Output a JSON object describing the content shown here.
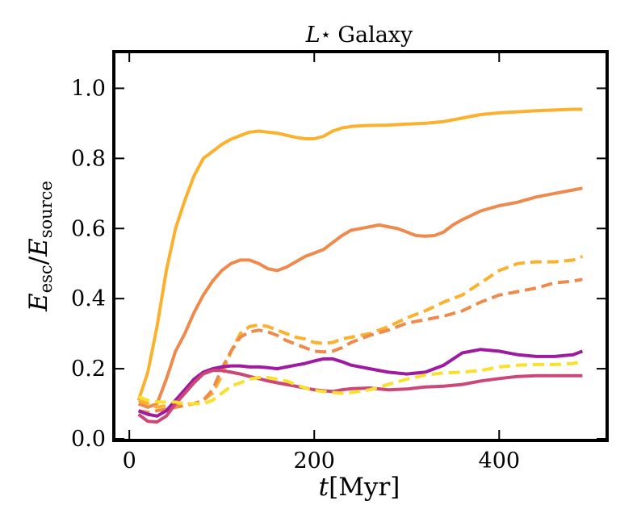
{
  "chart_data": {
    "type": "line",
    "title": "L⋆ Galaxy",
    "title_parts": {
      "symbol": "L",
      "star": "⋆",
      "rest": "Galaxy"
    },
    "xlabel": "t[Myr]",
    "xlabel_parts": {
      "var": "t",
      "unit": "[Myr]"
    },
    "ylabel": "E_esc / E_source",
    "ylabel_parts": {
      "num": "E",
      "num_sub": "esc",
      "sep": "/",
      "den": "E",
      "den_sub": "source"
    },
    "xlim": [
      -15,
      515
    ],
    "ylim": [
      0.0,
      1.1
    ],
    "xticks": [
      0,
      200,
      400
    ],
    "xtick_labels": [
      "0",
      "200",
      "400"
    ],
    "yticks": [
      0.0,
      0.2,
      0.4,
      0.6,
      0.8,
      1.0
    ],
    "ytick_labels": [
      "0.0",
      "0.2",
      "0.4",
      "0.6",
      "0.8",
      "1.0"
    ],
    "grid": false,
    "legend": "none",
    "series": [
      {
        "name": "solid-yellow-orange",
        "color": "#fbb12e",
        "dash": "solid",
        "x": [
          10,
          20,
          30,
          40,
          50,
          60,
          70,
          80,
          90,
          100,
          110,
          120,
          130,
          140,
          150,
          160,
          170,
          180,
          190,
          200,
          210,
          220,
          230,
          240,
          250,
          260,
          280,
          300,
          320,
          340,
          360,
          380,
          400,
          420,
          440,
          460,
          480,
          490
        ],
        "y": [
          0.11,
          0.19,
          0.32,
          0.48,
          0.6,
          0.68,
          0.75,
          0.8,
          0.82,
          0.84,
          0.855,
          0.865,
          0.875,
          0.878,
          0.875,
          0.872,
          0.866,
          0.86,
          0.856,
          0.856,
          0.863,
          0.878,
          0.887,
          0.891,
          0.893,
          0.894,
          0.895,
          0.898,
          0.9,
          0.905,
          0.915,
          0.925,
          0.93,
          0.933,
          0.936,
          0.938,
          0.94,
          0.94
        ]
      },
      {
        "name": "solid-orange",
        "color": "#ef8a4d",
        "dash": "solid",
        "x": [
          10,
          20,
          30,
          40,
          50,
          60,
          70,
          80,
          90,
          100,
          110,
          120,
          130,
          140,
          150,
          160,
          170,
          180,
          190,
          200,
          210,
          220,
          230,
          240,
          250,
          260,
          270,
          280,
          290,
          300,
          310,
          320,
          330,
          340,
          350,
          360,
          380,
          400,
          420,
          440,
          460,
          480,
          490
        ],
        "y": [
          0.1,
          0.09,
          0.1,
          0.17,
          0.25,
          0.3,
          0.36,
          0.41,
          0.45,
          0.48,
          0.5,
          0.51,
          0.51,
          0.5,
          0.485,
          0.48,
          0.49,
          0.505,
          0.52,
          0.53,
          0.54,
          0.56,
          0.58,
          0.595,
          0.6,
          0.605,
          0.61,
          0.605,
          0.6,
          0.59,
          0.58,
          0.578,
          0.58,
          0.59,
          0.61,
          0.625,
          0.65,
          0.665,
          0.675,
          0.69,
          0.7,
          0.71,
          0.715
        ]
      },
      {
        "name": "dashed-yellow-orange",
        "color": "#fbb12e",
        "dash": "dashed",
        "x": [
          10,
          20,
          30,
          40,
          50,
          60,
          70,
          80,
          90,
          100,
          110,
          120,
          130,
          140,
          150,
          160,
          170,
          180,
          190,
          200,
          210,
          220,
          230,
          240,
          260,
          280,
          300,
          320,
          340,
          360,
          380,
          400,
          420,
          440,
          460,
          480,
          490
        ],
        "y": [
          0.11,
          0.1,
          0.09,
          0.095,
          0.1,
          0.1,
          0.1,
          0.11,
          0.13,
          0.18,
          0.25,
          0.3,
          0.32,
          0.325,
          0.32,
          0.31,
          0.3,
          0.29,
          0.285,
          0.275,
          0.272,
          0.275,
          0.285,
          0.29,
          0.3,
          0.32,
          0.345,
          0.365,
          0.39,
          0.41,
          0.445,
          0.48,
          0.5,
          0.505,
          0.505,
          0.51,
          0.52
        ]
      },
      {
        "name": "dashed-orange",
        "color": "#ef8a4d",
        "dash": "dashed",
        "x": [
          10,
          20,
          30,
          40,
          50,
          60,
          70,
          80,
          90,
          100,
          110,
          120,
          130,
          140,
          150,
          160,
          170,
          180,
          190,
          200,
          210,
          220,
          230,
          240,
          260,
          280,
          300,
          320,
          340,
          360,
          380,
          400,
          420,
          440,
          460,
          480,
          490
        ],
        "y": [
          0.08,
          0.075,
          0.08,
          0.085,
          0.09,
          0.095,
          0.1,
          0.11,
          0.14,
          0.2,
          0.25,
          0.29,
          0.305,
          0.31,
          0.305,
          0.295,
          0.28,
          0.27,
          0.26,
          0.25,
          0.248,
          0.25,
          0.26,
          0.275,
          0.295,
          0.31,
          0.33,
          0.34,
          0.35,
          0.365,
          0.39,
          0.41,
          0.42,
          0.43,
          0.445,
          0.45,
          0.455
        ]
      },
      {
        "name": "solid-purple",
        "color": "#9e1aa0",
        "dash": "solid",
        "x": [
          10,
          20,
          30,
          40,
          50,
          60,
          70,
          80,
          90,
          100,
          110,
          120,
          130,
          140,
          150,
          160,
          170,
          180,
          190,
          200,
          210,
          220,
          230,
          240,
          260,
          280,
          300,
          320,
          340,
          360,
          380,
          400,
          420,
          440,
          460,
          480,
          490
        ],
        "y": [
          0.08,
          0.07,
          0.065,
          0.08,
          0.11,
          0.14,
          0.17,
          0.19,
          0.2,
          0.205,
          0.208,
          0.208,
          0.205,
          0.205,
          0.203,
          0.2,
          0.205,
          0.21,
          0.215,
          0.222,
          0.228,
          0.228,
          0.22,
          0.21,
          0.2,
          0.19,
          0.185,
          0.19,
          0.21,
          0.245,
          0.255,
          0.25,
          0.24,
          0.235,
          0.235,
          0.24,
          0.25
        ]
      },
      {
        "name": "solid-pink",
        "color": "#cc4777",
        "dash": "solid",
        "x": [
          10,
          20,
          30,
          40,
          50,
          60,
          70,
          80,
          90,
          100,
          110,
          120,
          130,
          140,
          150,
          160,
          170,
          180,
          190,
          200,
          210,
          220,
          230,
          240,
          260,
          280,
          300,
          320,
          340,
          360,
          380,
          400,
          420,
          440,
          460,
          480,
          490
        ],
        "y": [
          0.07,
          0.05,
          0.048,
          0.065,
          0.1,
          0.13,
          0.16,
          0.185,
          0.195,
          0.195,
          0.19,
          0.185,
          0.178,
          0.172,
          0.165,
          0.16,
          0.155,
          0.15,
          0.145,
          0.14,
          0.137,
          0.135,
          0.14,
          0.143,
          0.145,
          0.14,
          0.142,
          0.148,
          0.15,
          0.155,
          0.165,
          0.172,
          0.178,
          0.18,
          0.18,
          0.18,
          0.18
        ]
      },
      {
        "name": "dashed-yellow",
        "color": "#f9e02d",
        "dash": "dashed",
        "x": [
          10,
          20,
          30,
          40,
          50,
          60,
          70,
          80,
          90,
          100,
          110,
          120,
          130,
          140,
          150,
          160,
          170,
          180,
          190,
          200,
          210,
          220,
          230,
          240,
          260,
          280,
          300,
          320,
          340,
          360,
          380,
          400,
          420,
          440,
          460,
          480,
          490
        ],
        "y": [
          0.12,
          0.11,
          0.105,
          0.105,
          0.105,
          0.1,
          0.1,
          0.1,
          0.11,
          0.13,
          0.15,
          0.16,
          0.17,
          0.175,
          0.175,
          0.17,
          0.165,
          0.155,
          0.145,
          0.138,
          0.135,
          0.132,
          0.13,
          0.132,
          0.14,
          0.155,
          0.17,
          0.182,
          0.188,
          0.19,
          0.195,
          0.205,
          0.21,
          0.212,
          0.212,
          0.215,
          0.22
        ]
      }
    ]
  }
}
